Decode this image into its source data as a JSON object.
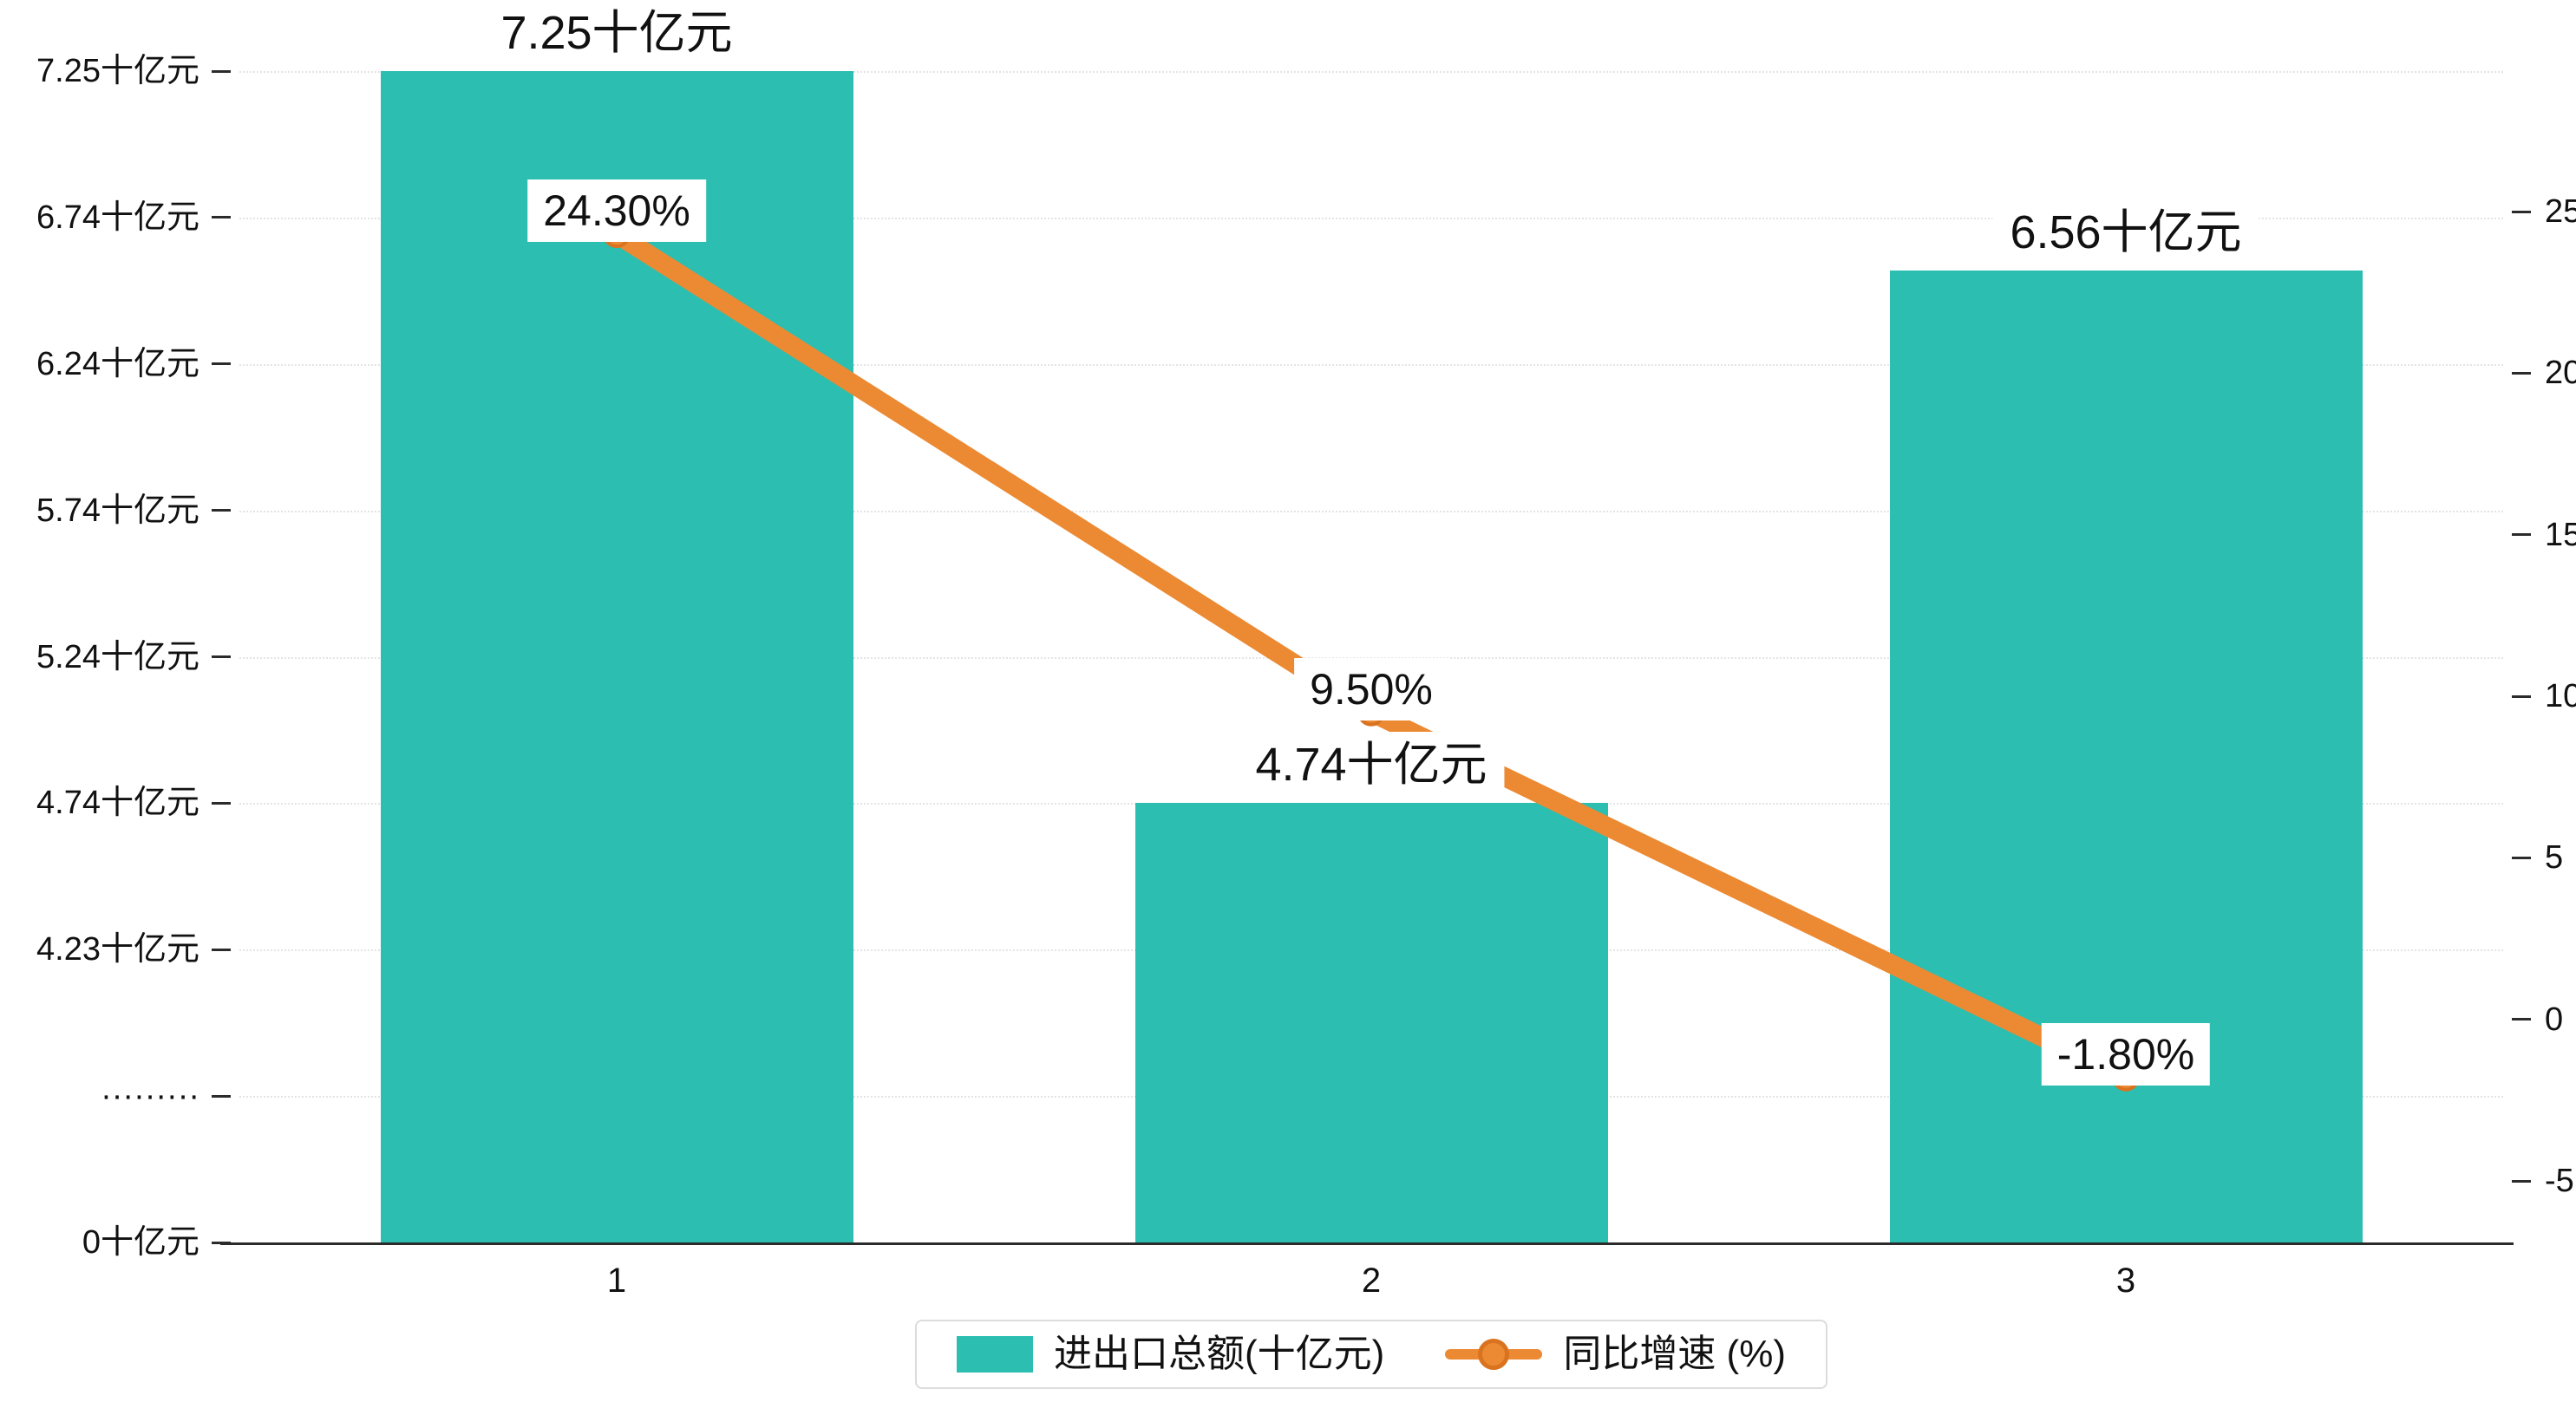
{
  "chart_data": {
    "type": "bar+line",
    "title": "",
    "categories": [
      "1",
      "2",
      "3"
    ],
    "series": [
      {
        "name": "进出口总额(十亿元)",
        "type": "bar",
        "axis": "left",
        "color": "#2cbeb1",
        "values": [
          7.25,
          4.74,
          6.56
        ],
        "labels": [
          "7.25十亿元",
          "4.74十亿元",
          "6.56十亿元"
        ]
      },
      {
        "name": "同比增速 (%)",
        "type": "line",
        "axis": "right",
        "color": "#ec8a33",
        "marker_edge_color": "#d9731f",
        "values": [
          24.3,
          9.5,
          -1.8
        ],
        "labels": [
          "24.30%",
          "9.50%",
          "-1.80%"
        ]
      }
    ],
    "left_axis": {
      "tick_labels": [
        "7.25十亿元",
        "6.74十亿元",
        "6.24十亿元",
        "5.74十亿元",
        "5.24十亿元",
        "4.74十亿元",
        "4.23十亿元",
        "·········",
        "0十亿元"
      ],
      "tick_values": [
        7.25,
        6.74,
        6.24,
        5.74,
        5.24,
        4.74,
        4.23,
        null,
        0
      ],
      "broken": true
    },
    "right_axis": {
      "tick_labels": [
        "25",
        "20",
        "15",
        "10",
        "5",
        "0",
        "-5"
      ],
      "tick_values": [
        25,
        20,
        15,
        10,
        5,
        0,
        -5
      ],
      "min": -5,
      "max": 25
    },
    "grid": true,
    "legend_position": "bottom-center",
    "legend": [
      {
        "label": "进出口总额(十亿元)",
        "marker": "bar",
        "color": "#2cbeb1"
      },
      {
        "label": "同比增速 (%)",
        "marker": "line",
        "color": "#ec8a33"
      }
    ]
  }
}
